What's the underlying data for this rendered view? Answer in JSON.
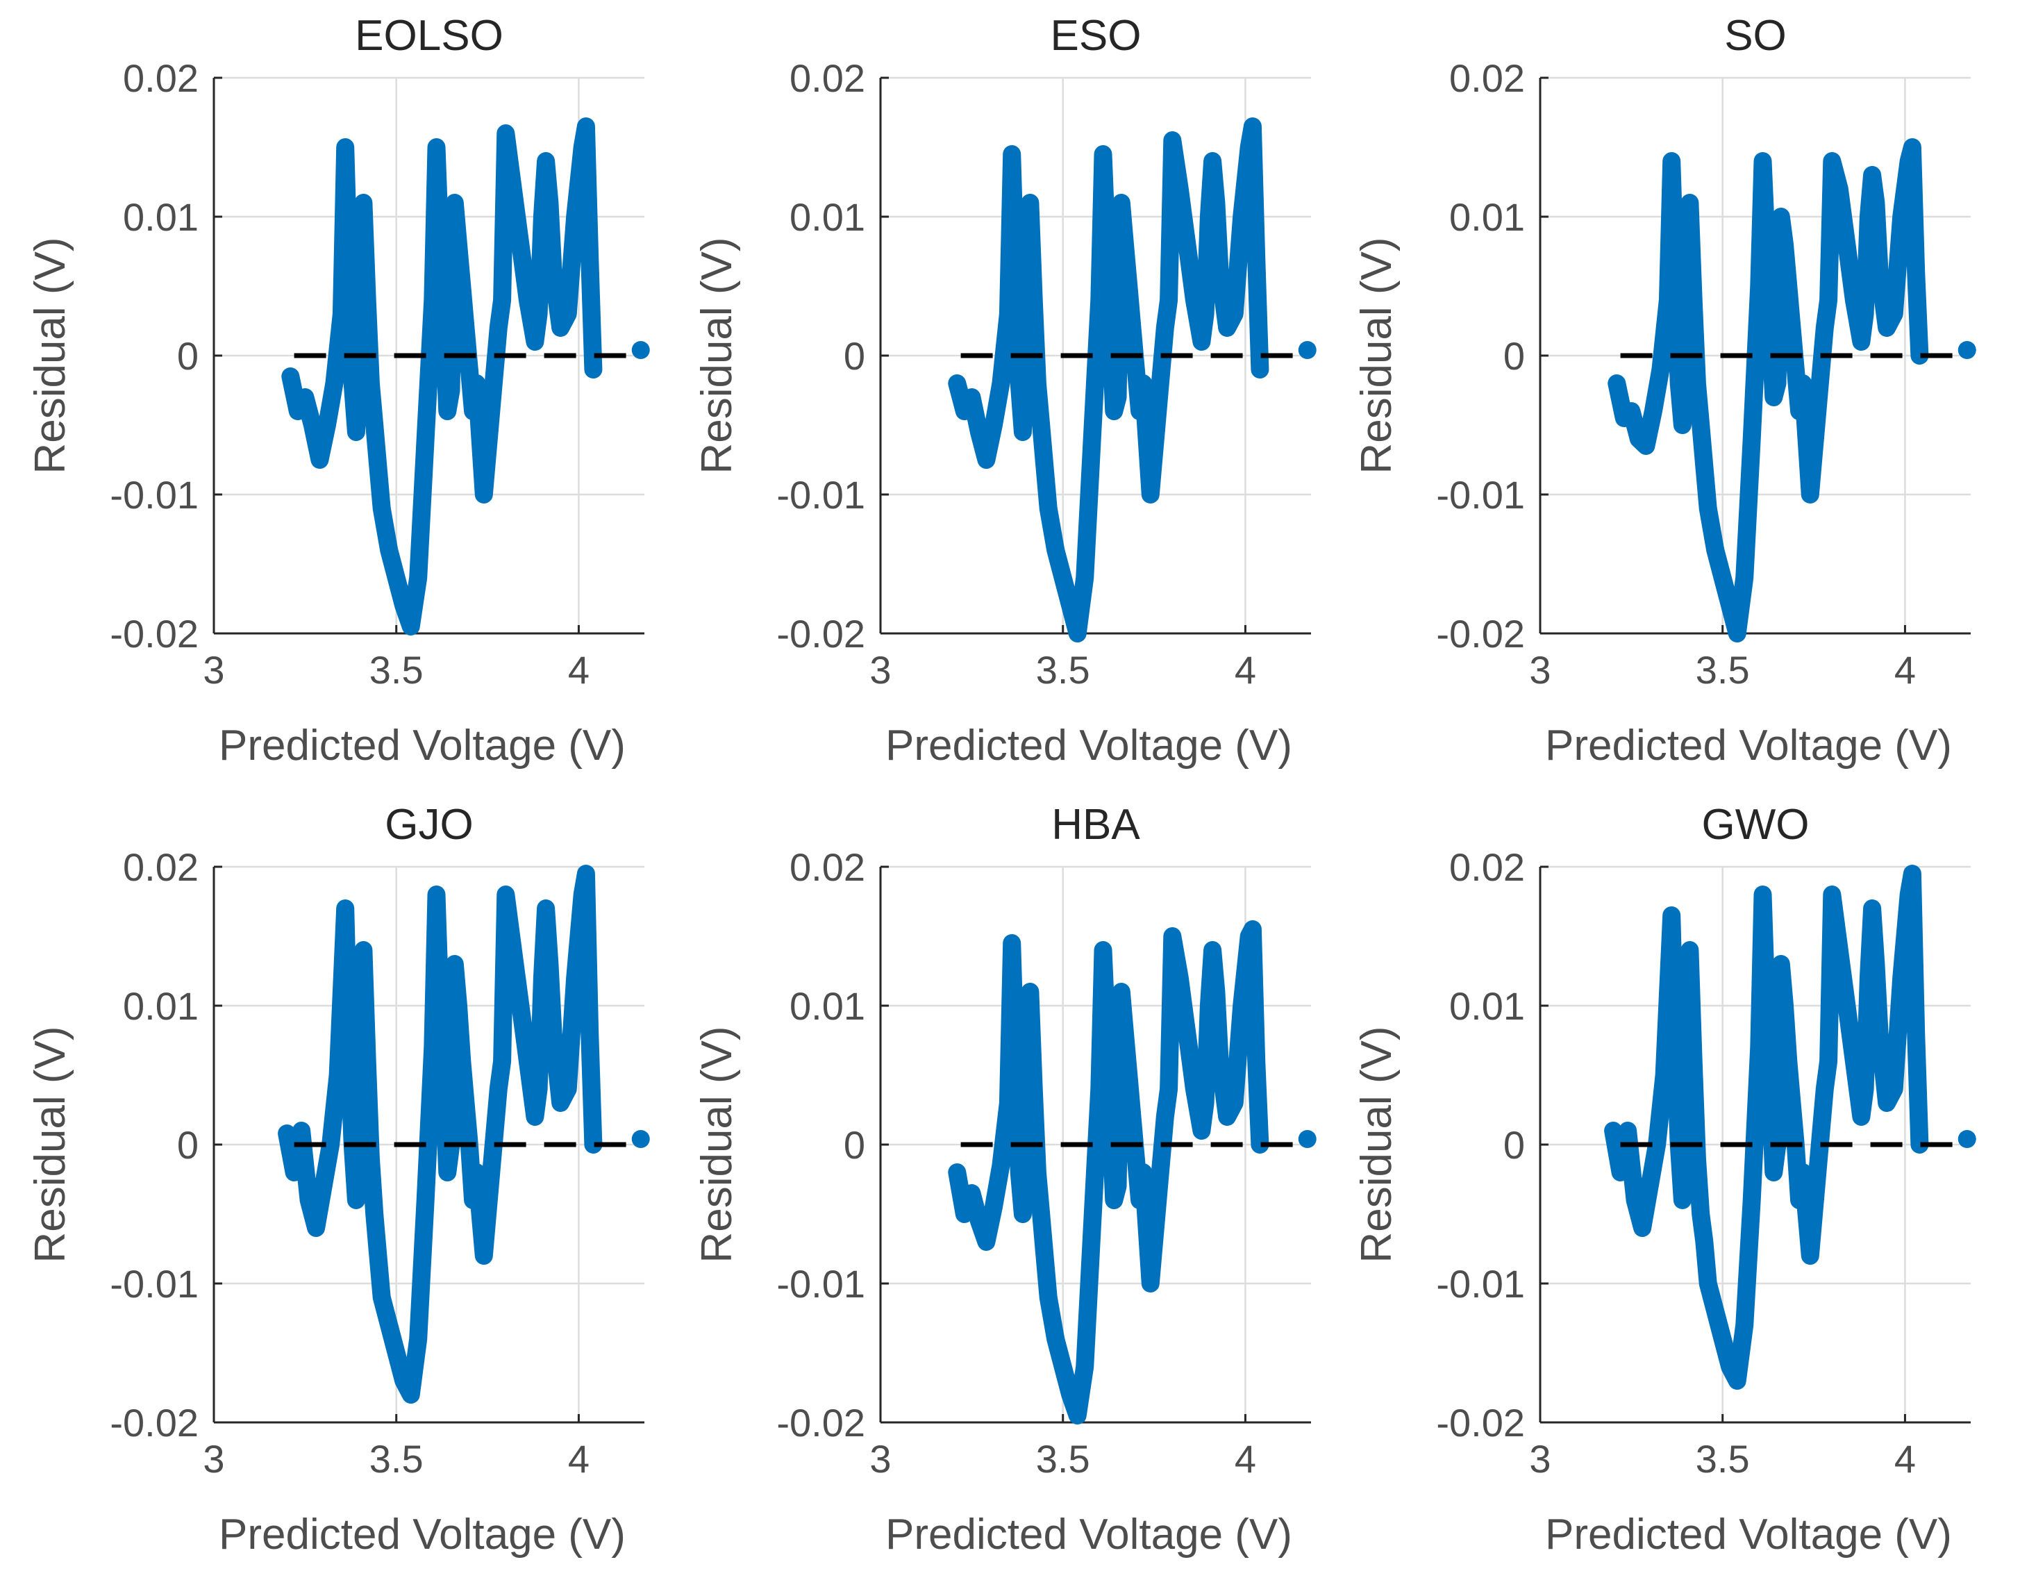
{
  "figure": {
    "x_label": "Predicted Voltage (V)",
    "y_label": "Residual (V)",
    "zero_line_style": "black dashed",
    "series_color": "#0072bd"
  },
  "chart_data": [
    {
      "type": "scatter",
      "title": "EOLSO",
      "xlabel": "Predicted Voltage (V)",
      "ylabel": "Residual (V)",
      "xlim": [
        3,
        4.18
      ],
      "ylim": [
        -0.02,
        0.02
      ],
      "xticks": [
        3,
        3.5,
        4
      ],
      "xtick_labels": [
        "3",
        "3.5",
        "4"
      ],
      "yticks": [
        0.02,
        0.01,
        0,
        -0.01,
        -0.02
      ],
      "ytick_labels": [
        "0.02",
        "0.01",
        "0",
        "-0.01",
        "-0.02"
      ],
      "grid": true,
      "zero_line": {
        "x": [
          3.22,
          4.15
        ],
        "y": 0
      },
      "peak_residual": 0.0165,
      "min_residual": -0.0195,
      "endpoint": [
        4.17,
        0.0004
      ],
      "series": [
        {
          "name": "Residual",
          "color": "#0072bd",
          "x": [
            3.21,
            3.23,
            3.25,
            3.27,
            3.29,
            3.31,
            3.33,
            3.35,
            3.36,
            3.37,
            3.38,
            3.39,
            3.4,
            3.41,
            3.42,
            3.43,
            3.44,
            3.45,
            3.46,
            3.48,
            3.5,
            3.52,
            3.54,
            3.56,
            3.58,
            3.6,
            3.61,
            3.62,
            3.63,
            3.64,
            3.65,
            3.66,
            3.67,
            3.68,
            3.69,
            3.7,
            3.71,
            3.72,
            3.74,
            3.76,
            3.78,
            3.79,
            3.8,
            3.82,
            3.84,
            3.86,
            3.88,
            3.89,
            3.9,
            3.91,
            3.92,
            3.93,
            3.95,
            3.97,
            3.99,
            4.01,
            4.02,
            4.03,
            4.04
          ],
          "y": [
            -0.0015,
            -0.004,
            -0.003,
            -0.005,
            -0.0075,
            -0.005,
            -0.002,
            0.003,
            0.015,
            0.006,
            -0.002,
            -0.0055,
            0.002,
            0.011,
            0.004,
            -0.002,
            -0.005,
            -0.008,
            -0.011,
            -0.014,
            -0.016,
            -0.018,
            -0.0195,
            -0.016,
            -0.006,
            0.004,
            0.015,
            0.008,
            0.002,
            -0.004,
            -0.0025,
            0.011,
            0.008,
            0.005,
            0.002,
            -0.001,
            -0.004,
            -0.002,
            -0.01,
            -0.004,
            0.002,
            0.004,
            0.016,
            0.012,
            0.008,
            0.004,
            0.001,
            0.003,
            0.01,
            0.014,
            0.011,
            0.006,
            0.002,
            0.003,
            0.01,
            0.015,
            0.0165,
            0.007,
            -0.001
          ]
        }
      ]
    },
    {
      "type": "scatter",
      "title": "ESO",
      "xlabel": "Predicted Voltage (V)",
      "ylabel": "Residual (V)",
      "xlim": [
        3,
        4.18
      ],
      "ylim": [
        -0.02,
        0.02
      ],
      "xticks": [
        3,
        3.5,
        4
      ],
      "xtick_labels": [
        "3",
        "3.5",
        "4"
      ],
      "yticks": [
        0.02,
        0.01,
        0,
        -0.01,
        -0.02
      ],
      "ytick_labels": [
        "0.02",
        "0.01",
        "0",
        "-0.01",
        "-0.02"
      ],
      "grid": true,
      "zero_line": {
        "x": [
          3.22,
          4.15
        ],
        "y": 0
      },
      "peak_residual": 0.0165,
      "min_residual": -0.02,
      "endpoint": [
        4.17,
        0.0004
      ],
      "series": [
        {
          "name": "Residual",
          "color": "#0072bd",
          "x": [
            3.21,
            3.23,
            3.25,
            3.27,
            3.29,
            3.31,
            3.33,
            3.35,
            3.36,
            3.37,
            3.38,
            3.39,
            3.4,
            3.41,
            3.42,
            3.43,
            3.44,
            3.45,
            3.46,
            3.48,
            3.5,
            3.52,
            3.54,
            3.56,
            3.58,
            3.6,
            3.61,
            3.62,
            3.63,
            3.64,
            3.65,
            3.66,
            3.67,
            3.68,
            3.69,
            3.7,
            3.71,
            3.72,
            3.74,
            3.76,
            3.78,
            3.79,
            3.8,
            3.82,
            3.84,
            3.86,
            3.88,
            3.89,
            3.9,
            3.91,
            3.92,
            3.93,
            3.95,
            3.97,
            3.99,
            4.01,
            4.02,
            4.03,
            4.04
          ],
          "y": [
            -0.002,
            -0.004,
            -0.003,
            -0.0055,
            -0.0075,
            -0.005,
            -0.002,
            0.003,
            0.0145,
            0.006,
            -0.002,
            -0.0055,
            0.002,
            0.011,
            0.004,
            -0.002,
            -0.005,
            -0.008,
            -0.011,
            -0.014,
            -0.016,
            -0.018,
            -0.02,
            -0.016,
            -0.006,
            0.004,
            0.0145,
            0.008,
            0.002,
            -0.004,
            -0.003,
            0.011,
            0.008,
            0.005,
            0.002,
            -0.001,
            -0.004,
            -0.002,
            -0.01,
            -0.004,
            0.002,
            0.004,
            0.0155,
            0.012,
            0.008,
            0.004,
            0.001,
            0.003,
            0.01,
            0.014,
            0.011,
            0.006,
            0.002,
            0.003,
            0.01,
            0.015,
            0.0165,
            0.007,
            -0.001
          ]
        }
      ]
    },
    {
      "type": "scatter",
      "title": "SO",
      "xlabel": "Predicted Voltage (V)",
      "ylabel": "Residual (V)",
      "xlim": [
        3,
        4.18
      ],
      "ylim": [
        -0.02,
        0.02
      ],
      "xticks": [
        3,
        3.5,
        4
      ],
      "xtick_labels": [
        "3",
        "3.5",
        "4"
      ],
      "yticks": [
        0.02,
        0.01,
        0,
        -0.01,
        -0.02
      ],
      "ytick_labels": [
        "0.02",
        "0.01",
        "0",
        "-0.01",
        "-0.02"
      ],
      "grid": true,
      "zero_line": {
        "x": [
          3.22,
          4.15
        ],
        "y": 0
      },
      "peak_residual": 0.0155,
      "min_residual": -0.02,
      "endpoint": [
        4.17,
        0.0004
      ],
      "series": [
        {
          "name": "Residual",
          "color": "#0072bd",
          "x": [
            3.21,
            3.23,
            3.25,
            3.27,
            3.29,
            3.31,
            3.33,
            3.35,
            3.36,
            3.37,
            3.38,
            3.39,
            3.4,
            3.41,
            3.42,
            3.43,
            3.44,
            3.45,
            3.46,
            3.48,
            3.5,
            3.52,
            3.54,
            3.56,
            3.58,
            3.6,
            3.61,
            3.62,
            3.63,
            3.64,
            3.65,
            3.66,
            3.67,
            3.68,
            3.69,
            3.7,
            3.71,
            3.72,
            3.74,
            3.76,
            3.78,
            3.79,
            3.8,
            3.82,
            3.84,
            3.86,
            3.88,
            3.89,
            3.9,
            3.91,
            3.92,
            3.93,
            3.95,
            3.97,
            3.99,
            4.01,
            4.02,
            4.03,
            4.04
          ],
          "y": [
            -0.002,
            -0.0045,
            -0.004,
            -0.006,
            -0.0065,
            -0.004,
            -0.001,
            0.004,
            0.014,
            0.006,
            -0.002,
            -0.005,
            0.003,
            0.011,
            0.004,
            -0.002,
            -0.005,
            -0.008,
            -0.011,
            -0.014,
            -0.016,
            -0.018,
            -0.02,
            -0.016,
            -0.006,
            0.005,
            0.014,
            0.008,
            0.002,
            -0.003,
            -0.002,
            0.01,
            0.008,
            0.005,
            0.002,
            -0.001,
            -0.004,
            -0.002,
            -0.01,
            -0.004,
            0.002,
            0.004,
            0.014,
            0.012,
            0.008,
            0.004,
            0.001,
            0.003,
            0.01,
            0.013,
            0.011,
            0.006,
            0.002,
            0.003,
            0.01,
            0.014,
            0.015,
            0.006,
            0.0
          ]
        }
      ]
    },
    {
      "type": "scatter",
      "title": "GJO",
      "xlabel": "Predicted Voltage (V)",
      "ylabel": "Residual (V)",
      "xlim": [
        3,
        4.18
      ],
      "ylim": [
        -0.02,
        0.02
      ],
      "xticks": [
        3,
        3.5,
        4
      ],
      "xtick_labels": [
        "3",
        "3.5",
        "4"
      ],
      "yticks": [
        0.02,
        0.01,
        0,
        -0.01,
        -0.02
      ],
      "ytick_labels": [
        "0.02",
        "0.01",
        "0",
        "-0.01",
        "-0.02"
      ],
      "grid": true,
      "zero_line": {
        "x": [
          3.22,
          4.15
        ],
        "y": 0
      },
      "peak_residual": 0.0195,
      "min_residual": -0.018,
      "endpoint": [
        4.17,
        0.0004
      ],
      "series": [
        {
          "name": "Residual",
          "color": "#0072bd",
          "x": [
            3.2,
            3.22,
            3.24,
            3.26,
            3.28,
            3.3,
            3.32,
            3.34,
            3.36,
            3.37,
            3.38,
            3.39,
            3.4,
            3.41,
            3.42,
            3.43,
            3.44,
            3.45,
            3.46,
            3.48,
            3.5,
            3.52,
            3.54,
            3.56,
            3.58,
            3.6,
            3.61,
            3.62,
            3.63,
            3.64,
            3.65,
            3.66,
            3.67,
            3.68,
            3.69,
            3.7,
            3.71,
            3.72,
            3.74,
            3.76,
            3.78,
            3.79,
            3.8,
            3.82,
            3.84,
            3.86,
            3.88,
            3.89,
            3.9,
            3.91,
            3.92,
            3.93,
            3.95,
            3.97,
            3.99,
            4.01,
            4.02,
            4.03,
            4.04
          ],
          "y": [
            0.0008,
            -0.002,
            0.001,
            -0.004,
            -0.006,
            -0.003,
            0.0,
            0.005,
            0.017,
            0.007,
            0.0,
            -0.004,
            0.004,
            0.014,
            0.006,
            -0.001,
            -0.005,
            -0.008,
            -0.011,
            -0.013,
            -0.015,
            -0.017,
            -0.018,
            -0.014,
            -0.004,
            0.007,
            0.018,
            0.01,
            0.004,
            -0.002,
            0.0,
            0.013,
            0.01,
            0.006,
            0.003,
            0.0,
            -0.004,
            -0.002,
            -0.008,
            -0.002,
            0.004,
            0.006,
            0.018,
            0.014,
            0.01,
            0.006,
            0.002,
            0.004,
            0.012,
            0.017,
            0.013,
            0.008,
            0.003,
            0.004,
            0.012,
            0.018,
            0.0195,
            0.008,
            0.0
          ]
        }
      ]
    },
    {
      "type": "scatter",
      "title": "HBA",
      "xlabel": "Predicted Voltage (V)",
      "ylabel": "Residual (V)",
      "xlim": [
        3,
        4.18
      ],
      "ylim": [
        -0.02,
        0.02
      ],
      "xticks": [
        3,
        3.5,
        4
      ],
      "xtick_labels": [
        "3",
        "3.5",
        "4"
      ],
      "yticks": [
        0.02,
        0.01,
        0,
        -0.01,
        -0.02
      ],
      "ytick_labels": [
        "0.02",
        "0.01",
        "0",
        "-0.01",
        "-0.02"
      ],
      "grid": true,
      "zero_line": {
        "x": [
          3.22,
          4.15
        ],
        "y": 0
      },
      "peak_residual": 0.0155,
      "min_residual": -0.0195,
      "endpoint": [
        4.17,
        0.0004
      ],
      "series": [
        {
          "name": "Residual",
          "color": "#0072bd",
          "x": [
            3.21,
            3.23,
            3.25,
            3.27,
            3.29,
            3.31,
            3.33,
            3.35,
            3.36,
            3.37,
            3.38,
            3.39,
            3.4,
            3.41,
            3.42,
            3.43,
            3.44,
            3.45,
            3.46,
            3.48,
            3.5,
            3.52,
            3.54,
            3.56,
            3.58,
            3.6,
            3.61,
            3.62,
            3.63,
            3.64,
            3.65,
            3.66,
            3.67,
            3.68,
            3.69,
            3.7,
            3.71,
            3.72,
            3.74,
            3.76,
            3.78,
            3.79,
            3.8,
            3.82,
            3.84,
            3.86,
            3.88,
            3.89,
            3.9,
            3.91,
            3.92,
            3.93,
            3.95,
            3.97,
            3.99,
            4.01,
            4.02,
            4.03,
            4.04
          ],
          "y": [
            -0.002,
            -0.005,
            -0.0035,
            -0.0055,
            -0.007,
            -0.0045,
            -0.0015,
            0.003,
            0.0145,
            0.006,
            -0.002,
            -0.005,
            0.002,
            0.011,
            0.004,
            -0.002,
            -0.005,
            -0.008,
            -0.011,
            -0.014,
            -0.016,
            -0.018,
            -0.0195,
            -0.016,
            -0.006,
            0.004,
            0.014,
            0.008,
            0.002,
            -0.004,
            -0.003,
            0.011,
            0.008,
            0.005,
            0.002,
            -0.001,
            -0.004,
            -0.002,
            -0.01,
            -0.004,
            0.002,
            0.004,
            0.015,
            0.012,
            0.008,
            0.004,
            0.001,
            0.003,
            0.01,
            0.014,
            0.011,
            0.006,
            0.002,
            0.003,
            0.01,
            0.015,
            0.0155,
            0.006,
            0.0
          ]
        }
      ]
    },
    {
      "type": "scatter",
      "title": "GWO",
      "xlabel": "Predicted Voltage (V)",
      "ylabel": "Residual (V)",
      "xlim": [
        3,
        4.18
      ],
      "ylim": [
        -0.02,
        0.02
      ],
      "xticks": [
        3,
        3.5,
        4
      ],
      "xtick_labels": [
        "3",
        "3.5",
        "4"
      ],
      "yticks": [
        0.02,
        0.01,
        0,
        -0.01,
        -0.02
      ],
      "ytick_labels": [
        "0.02",
        "0.01",
        "0",
        "-0.01",
        "-0.02"
      ],
      "grid": true,
      "zero_line": {
        "x": [
          3.22,
          4.15
        ],
        "y": 0
      },
      "peak_residual": 0.0195,
      "min_residual": -0.017,
      "endpoint": [
        4.17,
        0.0004
      ],
      "series": [
        {
          "name": "Residual",
          "color": "#0072bd",
          "x": [
            3.2,
            3.22,
            3.24,
            3.26,
            3.28,
            3.3,
            3.32,
            3.34,
            3.36,
            3.37,
            3.38,
            3.39,
            3.4,
            3.41,
            3.42,
            3.43,
            3.44,
            3.45,
            3.46,
            3.48,
            3.5,
            3.52,
            3.54,
            3.56,
            3.58,
            3.6,
            3.61,
            3.62,
            3.63,
            3.64,
            3.65,
            3.66,
            3.67,
            3.68,
            3.69,
            3.7,
            3.71,
            3.72,
            3.74,
            3.76,
            3.78,
            3.79,
            3.8,
            3.82,
            3.84,
            3.86,
            3.88,
            3.89,
            3.9,
            3.91,
            3.92,
            3.93,
            3.95,
            3.97,
            3.99,
            4.01,
            4.02,
            4.03,
            4.04
          ],
          "y": [
            0.001,
            -0.002,
            0.001,
            -0.004,
            -0.006,
            -0.003,
            0.0,
            0.005,
            0.0165,
            0.007,
            0.0,
            -0.004,
            0.004,
            0.014,
            0.006,
            -0.001,
            -0.005,
            -0.007,
            -0.01,
            -0.012,
            -0.014,
            -0.016,
            -0.017,
            -0.013,
            -0.004,
            0.007,
            0.018,
            0.01,
            0.004,
            -0.002,
            0.0,
            0.013,
            0.01,
            0.006,
            0.003,
            0.0,
            -0.004,
            -0.002,
            -0.008,
            -0.002,
            0.004,
            0.006,
            0.018,
            0.014,
            0.01,
            0.006,
            0.002,
            0.004,
            0.012,
            0.017,
            0.013,
            0.008,
            0.003,
            0.004,
            0.012,
            0.018,
            0.0195,
            0.008,
            0.0
          ]
        }
      ]
    }
  ]
}
